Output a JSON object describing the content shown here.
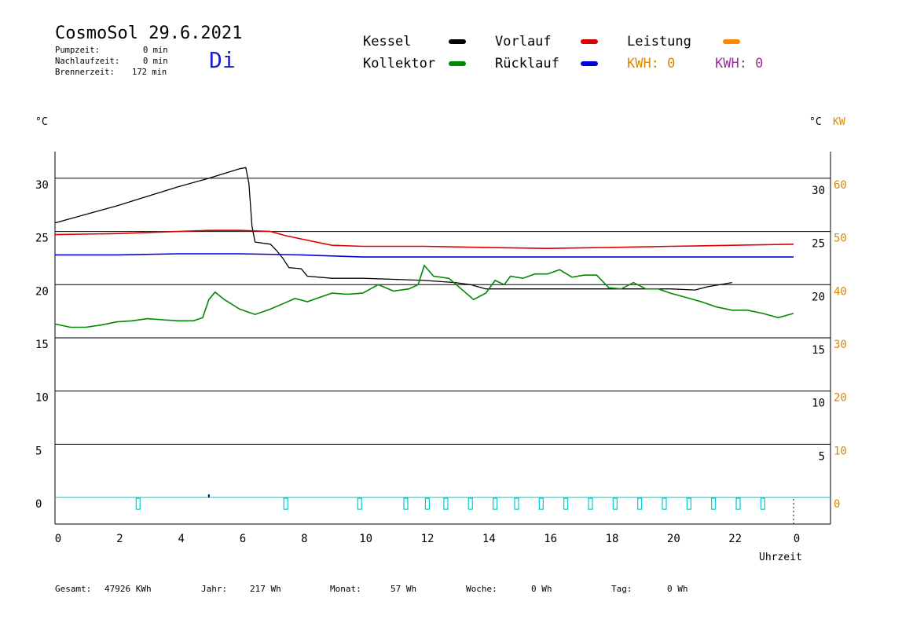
{
  "header": {
    "title": "CosmoSol 29.6.2021",
    "weekday": "Di",
    "stats": [
      {
        "label": "Pumpzeit:",
        "value": "0 min"
      },
      {
        "label": "Nachlaufzeit:",
        "value": "0 min"
      },
      {
        "label": "Brennerzeit:",
        "value": "172 min"
      }
    ]
  },
  "legend": {
    "kessel": {
      "label": "Kessel",
      "color": "#000000"
    },
    "vorlauf": {
      "label": "Vorlauf",
      "color": "#dd0000"
    },
    "leistung": {
      "label": "Leistung",
      "color": "#ff8800"
    },
    "kollektor": {
      "label": "Kollektor",
      "color": "#008800"
    },
    "ruecklauf": {
      "label": "Rücklauf",
      "color": "#0000dd"
    },
    "kwh1": {
      "text": "KWH: 0",
      "color": "#dd8800"
    },
    "kwh2": {
      "text": "KWH: 0",
      "color": "#993399"
    }
  },
  "axes": {
    "left_unit": "°C",
    "right_unit": "°C",
    "right_unit2": "KW",
    "xlabel": "Uhrzeit"
  },
  "footer": {
    "gesamt": {
      "label": "Gesamt:",
      "value": "47926 KWh"
    },
    "jahr": {
      "label": "Jahr:",
      "value": "217 Wh"
    },
    "monat": {
      "label": "Monat:",
      "value": "57 Wh"
    },
    "woche": {
      "label": "Woche:",
      "value": "0 Wh"
    },
    "tag": {
      "label": "Tag:",
      "value": "0 Wh"
    }
  },
  "chart_data": {
    "type": "line",
    "x_ticks": [
      "0",
      "2",
      "4",
      "6",
      "8",
      "10",
      "12",
      "14",
      "16",
      "18",
      "20",
      "22",
      "0"
    ],
    "y_ticks_left": [
      "0",
      "5",
      "10",
      "15",
      "20",
      "25",
      "30"
    ],
    "y_ticks_right_c": [
      "5",
      "10",
      "15",
      "20",
      "25",
      "30"
    ],
    "y_ticks_right_kw": [
      "0",
      "10",
      "20",
      "30",
      "40",
      "50",
      "60"
    ],
    "ylim": [
      -2.5,
      32.5
    ],
    "xlim": [
      0,
      24
    ],
    "series": [
      {
        "name": "Kessel",
        "color": "#000000",
        "points": [
          [
            0,
            25.8
          ],
          [
            1,
            26.6
          ],
          [
            2,
            27.4
          ],
          [
            3,
            28.3
          ],
          [
            4,
            29.2
          ],
          [
            5,
            30.0
          ],
          [
            6,
            30.9
          ],
          [
            6.2,
            31.0
          ],
          [
            6.3,
            29.5
          ],
          [
            6.4,
            25.5
          ],
          [
            6.5,
            24.0
          ],
          [
            7.0,
            23.8
          ],
          [
            7.2,
            23.2
          ],
          [
            7.4,
            22.5
          ],
          [
            7.6,
            21.6
          ],
          [
            8.0,
            21.5
          ],
          [
            8.2,
            20.8
          ],
          [
            9,
            20.6
          ],
          [
            10,
            20.6
          ],
          [
            11,
            20.5
          ],
          [
            12,
            20.4
          ],
          [
            13,
            20.2
          ],
          [
            13.5,
            20.0
          ],
          [
            14,
            19.6
          ],
          [
            16,
            19.6
          ],
          [
            18,
            19.6
          ],
          [
            20,
            19.6
          ],
          [
            20.8,
            19.5
          ],
          [
            21.2,
            19.8
          ],
          [
            22,
            20.2
          ]
        ]
      },
      {
        "name": "Vorlauf",
        "color": "#dd0000",
        "points": [
          [
            0,
            24.7
          ],
          [
            2,
            24.8
          ],
          [
            3,
            24.9
          ],
          [
            4,
            25.0
          ],
          [
            5,
            25.1
          ],
          [
            6,
            25.1
          ],
          [
            7,
            25.0
          ],
          [
            7.5,
            24.6
          ],
          [
            8,
            24.3
          ],
          [
            9,
            23.7
          ],
          [
            10,
            23.6
          ],
          [
            12,
            23.6
          ],
          [
            14,
            23.5
          ],
          [
            16,
            23.4
          ],
          [
            18,
            23.5
          ],
          [
            20,
            23.6
          ],
          [
            22,
            23.7
          ],
          [
            24,
            23.8
          ]
        ]
      },
      {
        "name": "Rücklauf",
        "color": "#0000dd",
        "points": [
          [
            0,
            22.8
          ],
          [
            2,
            22.8
          ],
          [
            4,
            22.9
          ],
          [
            6,
            22.9
          ],
          [
            8,
            22.8
          ],
          [
            10,
            22.6
          ],
          [
            12,
            22.6
          ],
          [
            14,
            22.6
          ],
          [
            16,
            22.6
          ],
          [
            18,
            22.6
          ],
          [
            20,
            22.6
          ],
          [
            22,
            22.6
          ],
          [
            24,
            22.6
          ]
        ]
      },
      {
        "name": "Kollektor",
        "color": "#008800",
        "points": [
          [
            0,
            16.3
          ],
          [
            0.5,
            16.0
          ],
          [
            1,
            16.0
          ],
          [
            1.5,
            16.2
          ],
          [
            2,
            16.5
          ],
          [
            2.5,
            16.6
          ],
          [
            3,
            16.8
          ],
          [
            3.5,
            16.7
          ],
          [
            4,
            16.6
          ],
          [
            4.5,
            16.6
          ],
          [
            4.8,
            16.9
          ],
          [
            5,
            18.6
          ],
          [
            5.2,
            19.3
          ],
          [
            5.5,
            18.6
          ],
          [
            6,
            17.7
          ],
          [
            6.5,
            17.2
          ],
          [
            7,
            17.7
          ],
          [
            7.4,
            18.2
          ],
          [
            7.8,
            18.7
          ],
          [
            8.2,
            18.4
          ],
          [
            8.6,
            18.8
          ],
          [
            9,
            19.2
          ],
          [
            9.5,
            19.1
          ],
          [
            10,
            19.2
          ],
          [
            10.5,
            20.0
          ],
          [
            11,
            19.4
          ],
          [
            11.5,
            19.6
          ],
          [
            11.8,
            20.0
          ],
          [
            12,
            21.8
          ],
          [
            12.3,
            20.8
          ],
          [
            12.8,
            20.6
          ],
          [
            13.2,
            19.6
          ],
          [
            13.6,
            18.6
          ],
          [
            14,
            19.2
          ],
          [
            14.3,
            20.4
          ],
          [
            14.6,
            20.0
          ],
          [
            14.8,
            20.8
          ],
          [
            15.2,
            20.6
          ],
          [
            15.6,
            21.0
          ],
          [
            16,
            21.0
          ],
          [
            16.4,
            21.4
          ],
          [
            16.8,
            20.7
          ],
          [
            17.2,
            20.9
          ],
          [
            17.6,
            20.9
          ],
          [
            18,
            19.7
          ],
          [
            18.4,
            19.6
          ],
          [
            18.8,
            20.2
          ],
          [
            19.2,
            19.6
          ],
          [
            19.6,
            19.6
          ],
          [
            20,
            19.2
          ],
          [
            20.5,
            18.8
          ],
          [
            21,
            18.4
          ],
          [
            21.5,
            17.9
          ],
          [
            22,
            17.6
          ],
          [
            22.5,
            17.6
          ],
          [
            23,
            17.3
          ],
          [
            23.5,
            16.9
          ],
          [
            24,
            17.3
          ]
        ]
      }
    ],
    "grid_values": [
      30,
      25,
      20,
      15,
      10,
      5,
      0
    ],
    "burner_markers_x": [
      2.7,
      7.5,
      9.9,
      11.4,
      12.1,
      12.7,
      13.5,
      14.3,
      15.0,
      15.8,
      16.6,
      17.4,
      18.2,
      19.0,
      19.8,
      20.6,
      21.4,
      22.2,
      23.0
    ]
  }
}
